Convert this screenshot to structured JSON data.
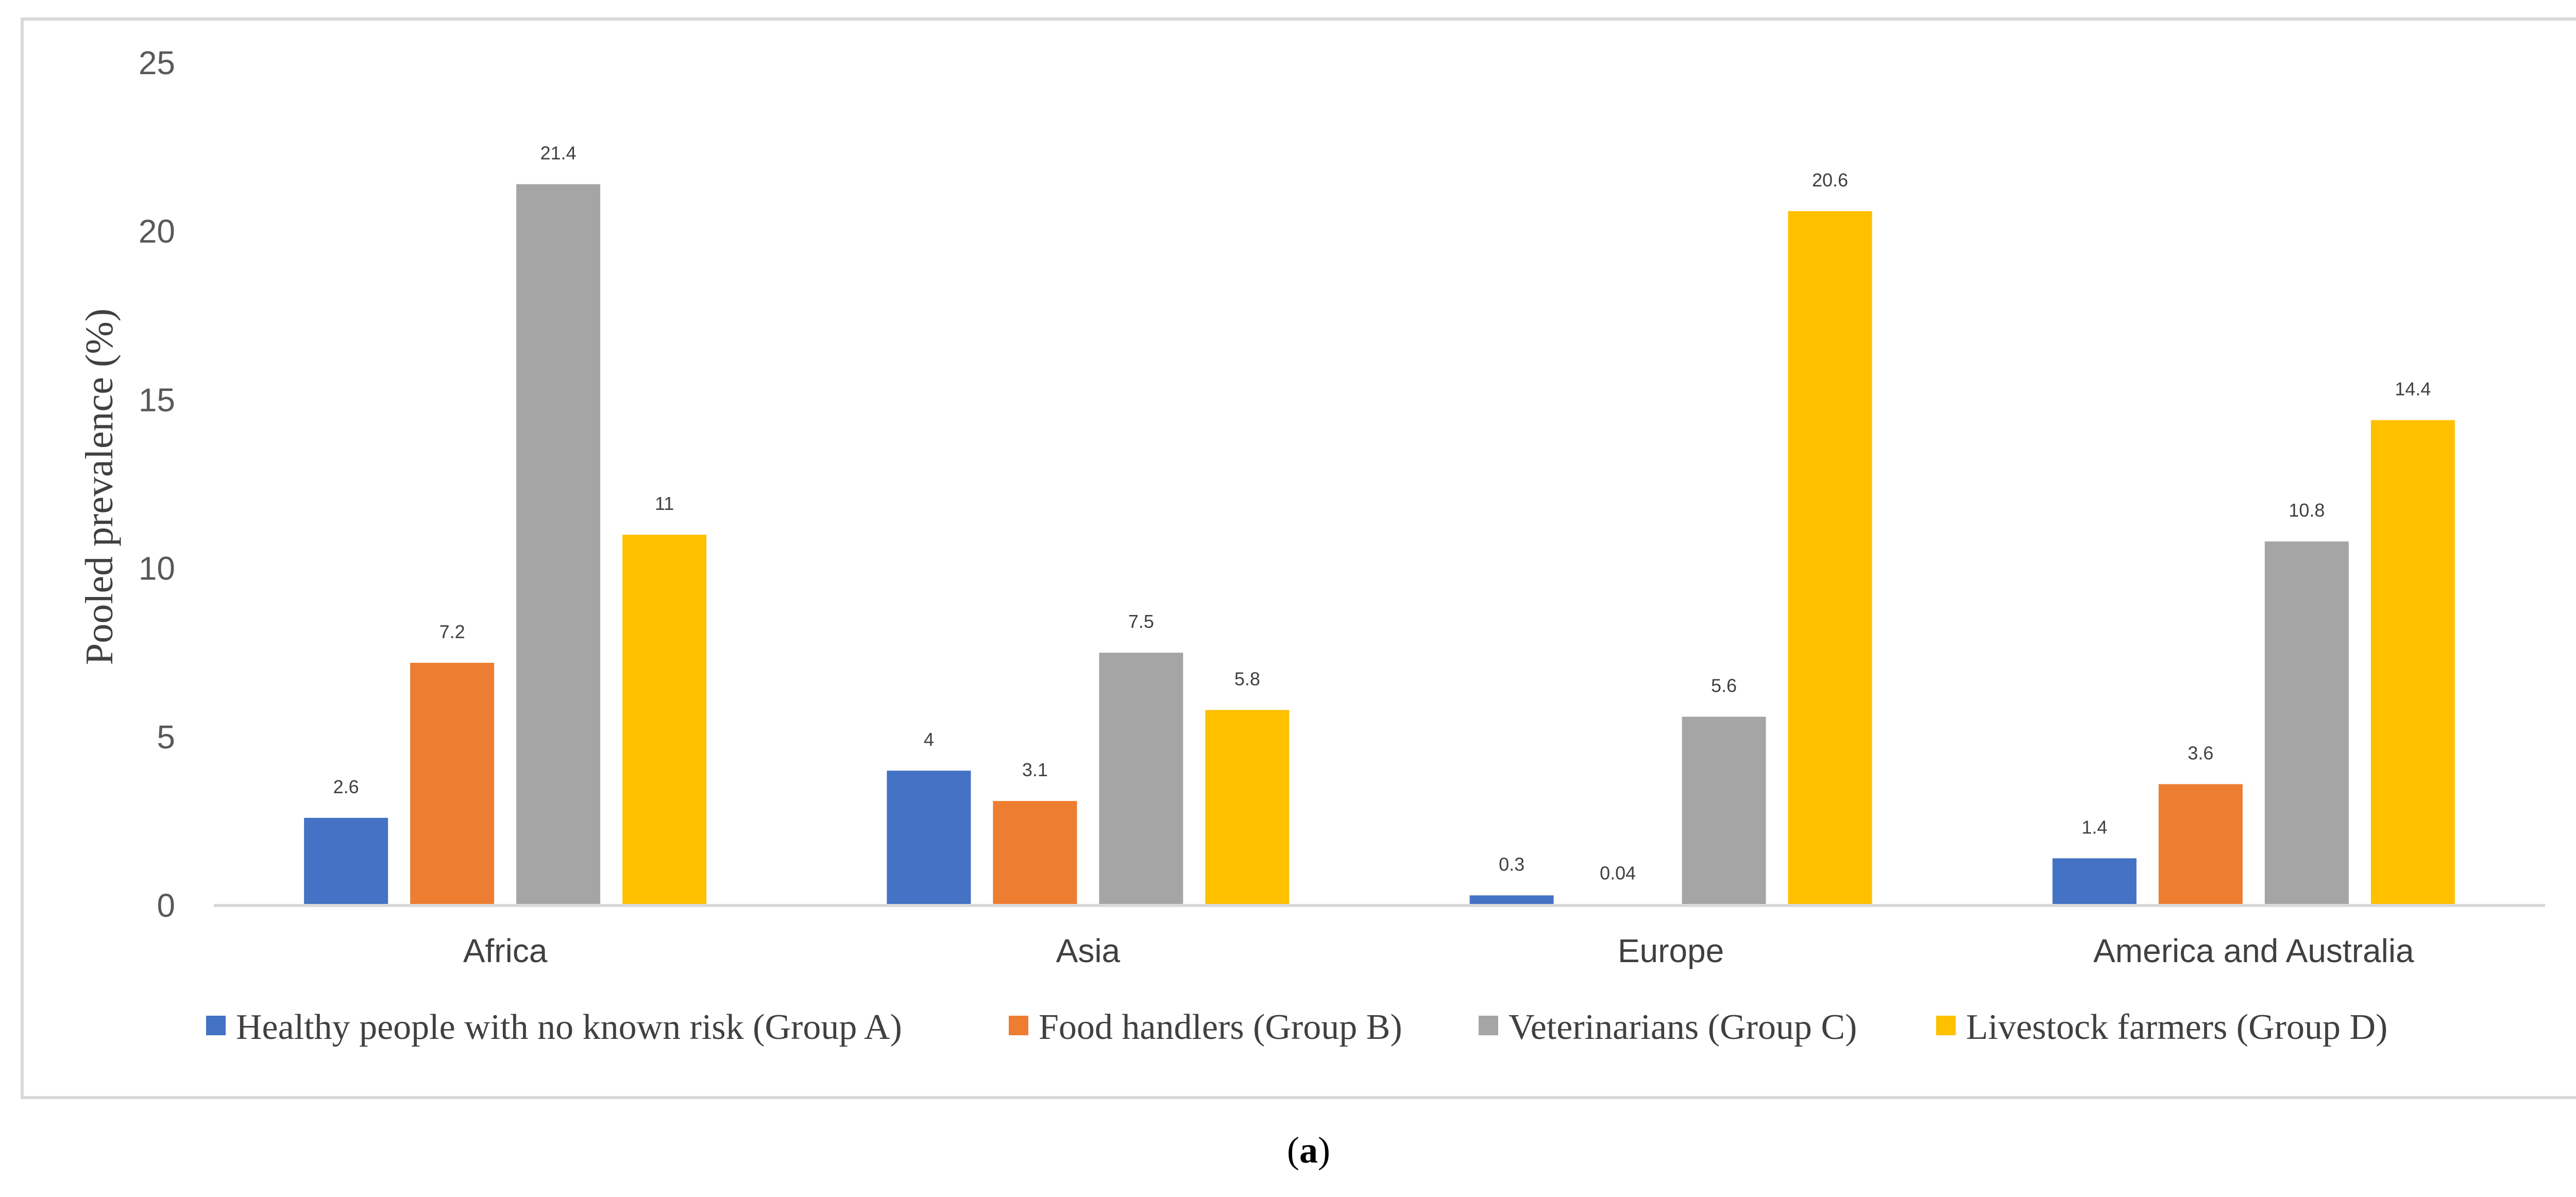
{
  "chart_data": {
    "type": "bar",
    "title": "",
    "xlabel": "",
    "ylabel": "Pooled prevalence (%)",
    "ylim": [
      0,
      25
    ],
    "yticks": [
      0,
      5,
      10,
      15,
      20,
      25
    ],
    "grid": false,
    "legend_position": "bottom",
    "categories": [
      "Africa",
      "Asia",
      "Europe",
      "America and Australia"
    ],
    "series": [
      {
        "name": "Healthy people with no known risk (Group A)",
        "color": "#4472C4",
        "values": [
          2.6,
          4,
          0.3,
          1.4
        ],
        "labels": [
          "2.6",
          "4",
          "0.3",
          "1.4"
        ]
      },
      {
        "name": "Food handlers (Group B)",
        "color": "#ED7D31",
        "values": [
          7.2,
          3.1,
          0.04,
          3.6
        ],
        "labels": [
          "7.2",
          "3.1",
          "0.04",
          "3.6"
        ]
      },
      {
        "name": "Veterinarians (Group C)",
        "color": "#A5A5A5",
        "values": [
          21.4,
          7.5,
          5.6,
          10.8
        ],
        "labels": [
          "21.4",
          "7.5",
          "5.6",
          "10.8"
        ]
      },
      {
        "name": "Livestock farmers (Group D)",
        "color": "#FFC000",
        "values": [
          11,
          5.8,
          20.6,
          14.4
        ],
        "labels": [
          "11",
          "5.8",
          "20.6",
          "14.4"
        ]
      }
    ]
  },
  "caption": {
    "open": "(",
    "letter": "a",
    "close": ")"
  }
}
